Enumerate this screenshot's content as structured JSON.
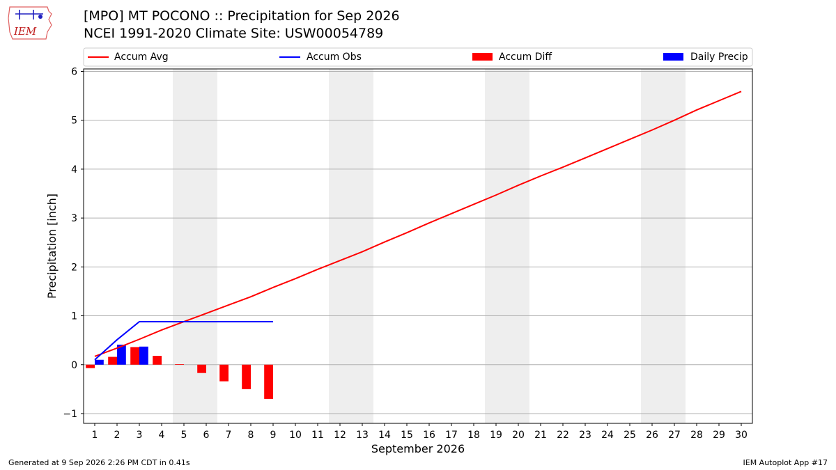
{
  "header": {
    "title_line1": "[MPO] MT POCONO :: Precipitation for Sep 2026",
    "title_line2": "NCEI 1991-2020 Climate Site: USW00054789",
    "logo_text": "IEM"
  },
  "footer": {
    "generated": "Generated at 9 Sep 2026 2:26 PM CDT in 0.41s",
    "app": "IEM Autoplot App #17"
  },
  "colors": {
    "avg": "#ff0000",
    "obs": "#0000ff",
    "diff": "#ff0000",
    "daily": "#0000ff",
    "weekend": "#eeeeee",
    "grid": "#b0b0b0"
  },
  "chart_data": {
    "type": "bar",
    "xlabel": "September 2026",
    "ylabel": "Precipitation [inch]",
    "xlim": [
      0.5,
      30.5
    ],
    "ylim": [
      -1.2,
      6.05
    ],
    "yticks": [
      -1,
      0,
      1,
      2,
      3,
      4,
      5,
      6
    ],
    "xticks": [
      1,
      2,
      3,
      4,
      5,
      6,
      7,
      8,
      9,
      10,
      11,
      12,
      13,
      14,
      15,
      16,
      17,
      18,
      19,
      20,
      21,
      22,
      23,
      24,
      25,
      26,
      27,
      28,
      29,
      30
    ],
    "grid": "horizontal",
    "legend_position": "top",
    "legend": [
      "Accum Avg",
      "Accum Obs",
      "Accum Diff",
      "Daily Precip"
    ],
    "weekend_spans": [
      [
        4.5,
        6.5
      ],
      [
        11.5,
        13.5
      ],
      [
        18.5,
        20.5
      ],
      [
        25.5,
        27.5
      ]
    ],
    "accum_avg": {
      "x": [
        1,
        2,
        3,
        4,
        5,
        6,
        7,
        8,
        9,
        10,
        11,
        12,
        13,
        14,
        15,
        16,
        17,
        18,
        19,
        20,
        21,
        22,
        23,
        24,
        25,
        26,
        27,
        28,
        29,
        30
      ],
      "values": [
        0.17,
        0.34,
        0.52,
        0.71,
        0.88,
        1.05,
        1.22,
        1.39,
        1.58,
        1.76,
        1.95,
        2.13,
        2.31,
        2.51,
        2.7,
        2.9,
        3.09,
        3.28,
        3.47,
        3.67,
        3.86,
        4.04,
        4.23,
        4.42,
        4.61,
        4.8,
        5.0,
        5.21,
        5.4,
        5.59
      ]
    },
    "accum_obs": {
      "x": [
        1,
        2,
        3,
        4,
        5,
        6,
        7,
        8,
        9
      ],
      "values": [
        0.1,
        0.51,
        0.88,
        0.88,
        0.88,
        0.88,
        0.88,
        0.88,
        0.88
      ]
    },
    "accum_diff": {
      "x": [
        1,
        2,
        3,
        4,
        5,
        6,
        7,
        8,
        9
      ],
      "values": [
        -0.07,
        0.16,
        0.36,
        0.18,
        0.01,
        -0.17,
        -0.34,
        -0.5,
        -0.7
      ]
    },
    "daily_precip": {
      "x": [
        1,
        2,
        3
      ],
      "values": [
        0.1,
        0.41,
        0.37
      ]
    }
  }
}
